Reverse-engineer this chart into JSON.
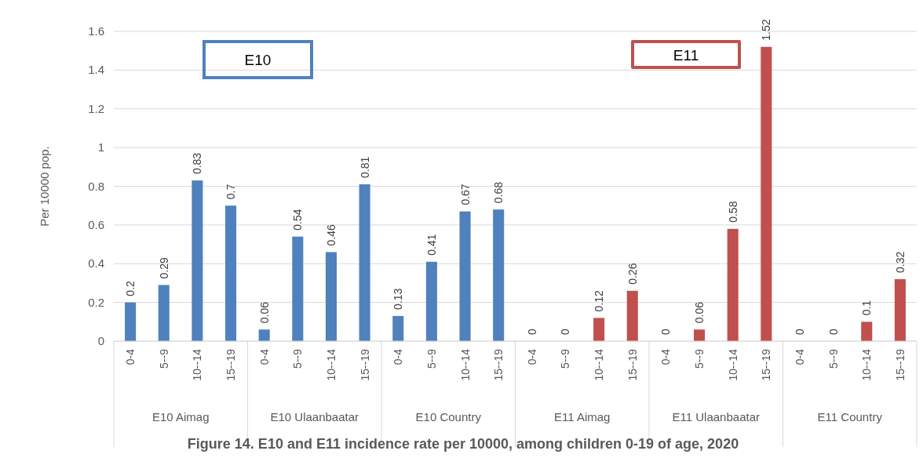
{
  "chart_data": {
    "type": "bar",
    "ylabel": "Per 10000 pop.",
    "categories": [
      "0-4",
      "5--9",
      "10--14",
      "15--19",
      "0-4",
      "5--9",
      "10--14",
      "15--19",
      "0-4",
      "5--9",
      "10--14",
      "15--19",
      "0-4",
      "5--9",
      "10--14",
      "15--19",
      "0-4",
      "5--9",
      "10--14",
      "15--19",
      "0-4",
      "5--9",
      "10--14",
      "15--19"
    ],
    "values": [
      0.2,
      0.29,
      0.83,
      0.7,
      0.06,
      0.54,
      0.46,
      0.81,
      0.13,
      0.41,
      0.67,
      0.68,
      0,
      0,
      0.12,
      0.26,
      0,
      0.06,
      0.58,
      1.52,
      0,
      0,
      0.1,
      0.32
    ],
    "colors": [
      "#4f81bd",
      "#4f81bd",
      "#4f81bd",
      "#4f81bd",
      "#4f81bd",
      "#4f81bd",
      "#4f81bd",
      "#4f81bd",
      "#4f81bd",
      "#4f81bd",
      "#4f81bd",
      "#4f81bd",
      "#c0504d",
      "#c0504d",
      "#c0504d",
      "#c0504d",
      "#c0504d",
      "#c0504d",
      "#c0504d",
      "#c0504d",
      "#c0504d",
      "#c0504d",
      "#c0504d",
      "#c0504d"
    ],
    "ylim": [
      0,
      1.6
    ],
    "yticks": [
      0,
      0.2,
      0.4,
      0.6,
      0.8,
      1,
      1.2,
      1.4,
      1.6
    ],
    "grid": "y",
    "data_labels": true,
    "annotations": [
      "E10",
      "E11",
      "E10 Aimag",
      "E10 Ulaanbaatar",
      "E10 Country",
      "E11 Aimag",
      "E11 Ulaanbaatar",
      "E11 Country",
      "Figure 14. E10 and E11 incidence rate per 10000, among children 0-19 of age, 2020"
    ]
  }
}
